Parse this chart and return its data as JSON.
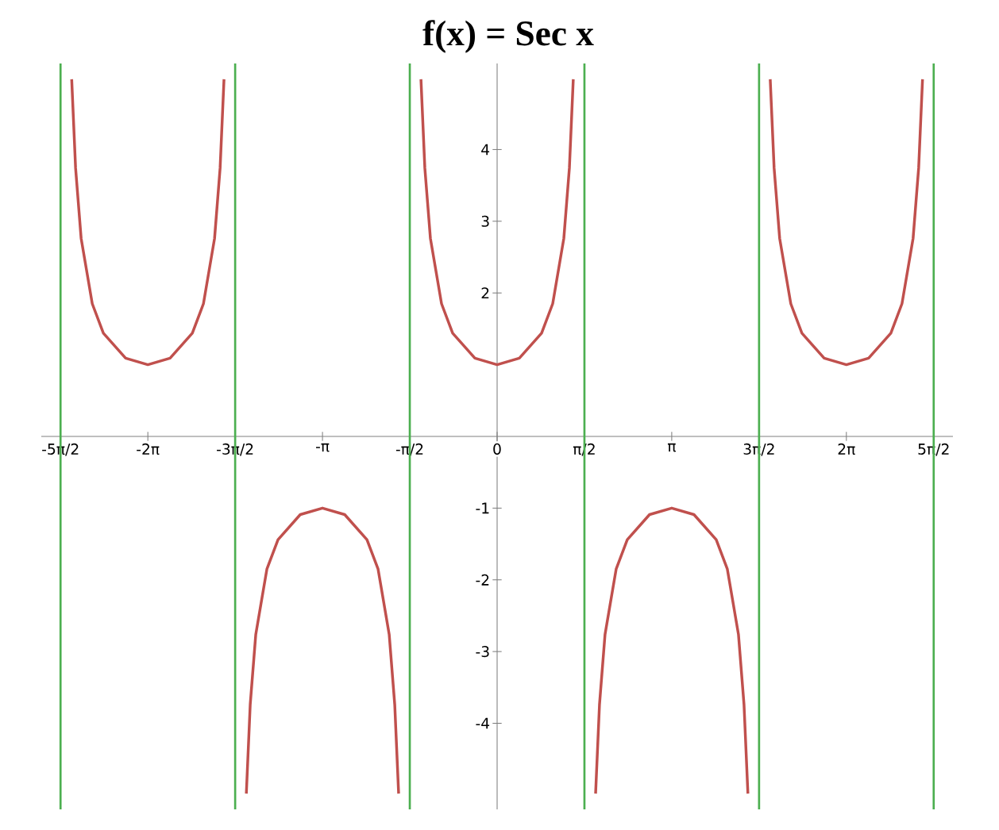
{
  "chart_data": {
    "type": "line",
    "title": "f(x) = Sec x",
    "series": [
      {
        "color": "#c0504d",
        "x": [
          -7.6532,
          -7.5832,
          -7.4832,
          -7.2832,
          -7.0832,
          -6.6832,
          -6.2832,
          -5.8832,
          -5.4832,
          -5.2832,
          -5.0832,
          -4.9832,
          -4.9132,
          -4.7124,
          -4.5116,
          -4.4416,
          -4.3416,
          -4.1416,
          -3.9416,
          -3.5416,
          -3.1416,
          -2.7416,
          -2.3416,
          -2.1416,
          -1.9416,
          -1.8416,
          -1.7716,
          -1.5708,
          -1.37,
          -1.3,
          -1.2,
          -1,
          -0.8,
          -0.4,
          0,
          0.4,
          0.8,
          1,
          1.2,
          1.3,
          1.37,
          1.5708,
          1.7716,
          1.8416,
          1.9416,
          2.1416,
          2.3416,
          2.7416,
          3.1416,
          3.5416,
          3.9416,
          4.1416,
          4.3416,
          4.4416,
          4.5116,
          4.7124,
          4.9132,
          4.9832,
          5.0832,
          5.2832,
          5.4832,
          5.8832,
          6.2832,
          6.6832,
          7.0832,
          7.2832,
          7.4832,
          7.5832,
          7.6532
        ],
        "values": [
          4.98,
          3.74,
          2.76,
          1.85,
          1.44,
          1.09,
          1,
          1.09,
          1.44,
          1.85,
          2.76,
          3.74,
          4.98,
          null,
          -4.98,
          -3.74,
          -2.76,
          -1.85,
          -1.44,
          -1.09,
          -1,
          -1.09,
          -1.44,
          -1.85,
          -2.76,
          -3.74,
          -4.98,
          null,
          4.98,
          3.74,
          2.76,
          1.85,
          1.44,
          1.09,
          1,
          1.09,
          1.44,
          1.85,
          2.76,
          3.74,
          4.98,
          null,
          -4.98,
          -3.74,
          -2.76,
          -1.85,
          -1.44,
          -1.09,
          -1,
          -1.09,
          -1.44,
          -1.85,
          -2.76,
          -3.74,
          -4.98,
          null,
          4.98,
          3.74,
          2.76,
          1.85,
          1.44,
          1.09,
          1,
          1.09,
          1.44,
          1.85,
          2.76,
          3.74,
          4.98
        ]
      }
    ],
    "xlim": [
      -8.2,
      8.2
    ],
    "ylim": [
      -5.2,
      5.2
    ],
    "xticks": [
      {
        "value": -7.854,
        "label": "-5π/2"
      },
      {
        "value": -6.2832,
        "label": "-2π"
      },
      {
        "value": -4.7124,
        "label": "-3π/2"
      },
      {
        "value": -3.1416,
        "label": "-π"
      },
      {
        "value": -1.5708,
        "label": "-π/2"
      },
      {
        "value": 0,
        "label": "0"
      },
      {
        "value": 1.5708,
        "label": "π/2"
      },
      {
        "value": 3.1416,
        "label": "π"
      },
      {
        "value": 4.7124,
        "label": "3π/2"
      },
      {
        "value": 6.2832,
        "label": "2π"
      },
      {
        "value": 7.854,
        "label": "5π/2"
      }
    ],
    "yticks": [
      -4,
      -3,
      -2,
      -1,
      2,
      3,
      4
    ],
    "ref_lines": [
      {
        "axis": "x",
        "value": -7.854,
        "color": "#4caf50"
      },
      {
        "axis": "x",
        "value": -4.7124,
        "color": "#4caf50"
      },
      {
        "axis": "x",
        "value": -1.5708,
        "color": "#4caf50"
      },
      {
        "axis": "x",
        "value": 1.5708,
        "color": "#4caf50"
      },
      {
        "axis": "x",
        "value": 4.7124,
        "color": "#4caf50"
      },
      {
        "axis": "x",
        "value": 7.854,
        "color": "#4caf50"
      }
    ],
    "grid": false,
    "marker": "none",
    "line_style": "solid"
  }
}
